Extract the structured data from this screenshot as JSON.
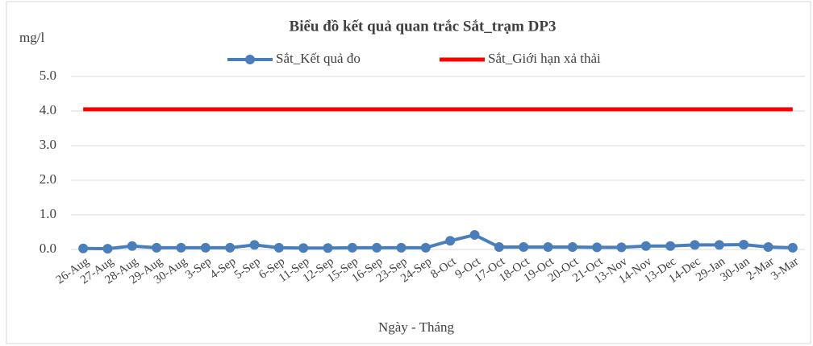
{
  "chart_data": {
    "type": "line",
    "title": "Biểu đồ kết quả quan trắc Sắt_trạm DP3",
    "y_label": "mg/l",
    "x_label": "Ngày - Tháng",
    "categories": [
      "26-Aug",
      "27-Aug",
      "28-Aug",
      "29-Aug",
      "30-Aug",
      "3-Sep",
      "4-Sep",
      "5-Sep",
      "6-Sep",
      "11-Sep",
      "12-Sep",
      "15-Sep",
      "16-Sep",
      "23-Sep",
      "24-Sep",
      "8-Oct",
      "9-Oct",
      "17-Oct",
      "18-Oct",
      "19-Oct",
      "20-Oct",
      "21-Oct",
      "13-Nov",
      "14-Nov",
      "13-Dec",
      "14-Dec",
      "29-Jan",
      "30-Jan",
      "2-Mar",
      "3-Mar"
    ],
    "series": [
      {
        "name": "Sắt_Kết quả đo",
        "color": "#4a7ebb",
        "marker": true,
        "values": [
          0.03,
          0.02,
          0.1,
          0.05,
          0.05,
          0.05,
          0.05,
          0.13,
          0.05,
          0.04,
          0.04,
          0.05,
          0.05,
          0.05,
          0.05,
          0.25,
          0.42,
          0.07,
          0.07,
          0.07,
          0.07,
          0.06,
          0.06,
          0.1,
          0.1,
          0.13,
          0.13,
          0.14,
          0.07,
          0.05
        ]
      },
      {
        "name": "Sắt_Giới hạn xả thải",
        "color": "#ff0000",
        "marker": false,
        "values": [
          4.05,
          4.05,
          4.05,
          4.05,
          4.05,
          4.05,
          4.05,
          4.05,
          4.05,
          4.05,
          4.05,
          4.05,
          4.05,
          4.05,
          4.05,
          4.05,
          4.05,
          4.05,
          4.05,
          4.05,
          4.05,
          4.05,
          4.05,
          4.05,
          4.05,
          4.05,
          4.05,
          4.05,
          4.05,
          4.05
        ]
      }
    ],
    "ylim": [
      0,
      5
    ],
    "yticks": [
      {
        "value": 0,
        "label": "0.0"
      },
      {
        "value": 1,
        "label": "1.0"
      },
      {
        "value": 2,
        "label": "2.0"
      },
      {
        "value": 3,
        "label": "3.0"
      },
      {
        "value": 4,
        "label": "4.0"
      },
      {
        "value": 5,
        "label": "5.0"
      }
    ],
    "grid": true,
    "legend": "top"
  }
}
